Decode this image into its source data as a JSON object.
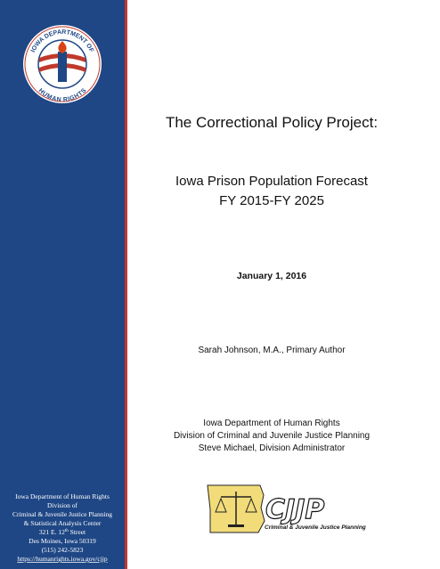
{
  "sidebar": {
    "logo": {
      "top_text": "IOWA DEPARTMENT OF",
      "bottom_text": "HUMAN RIGHTS"
    },
    "address": {
      "line1": "Iowa Department of Human Rights",
      "line2": "Division of",
      "line3": "Criminal & Juvenile Justice Planning",
      "line4": "& Statistical Analysis Center",
      "street": {
        "text": "321 E. 12",
        "superscript": "th",
        "rest": " Street"
      },
      "line6": "Des Moines, Iowa  50319",
      "line7": "(515) 242-5823",
      "url": "https://humanrights.iowa.gov/cjjp"
    }
  },
  "main": {
    "title": "The Correctional Policy Project:",
    "subtitle": [
      "Iowa Prison Population Forecast",
      "FY 2015-FY 2025"
    ],
    "date": "January 1, 2016",
    "author": "Sarah Johnson, M.A., Primary Author",
    "organization": [
      "Iowa Department of Human Rights",
      "Division of Criminal and Juvenile Justice Planning",
      "Steve Michael, Division Administrator"
    ]
  },
  "footer_logo": {
    "acronym": "CJJP",
    "name": "Criminal & Juvenile Justice Planning"
  }
}
